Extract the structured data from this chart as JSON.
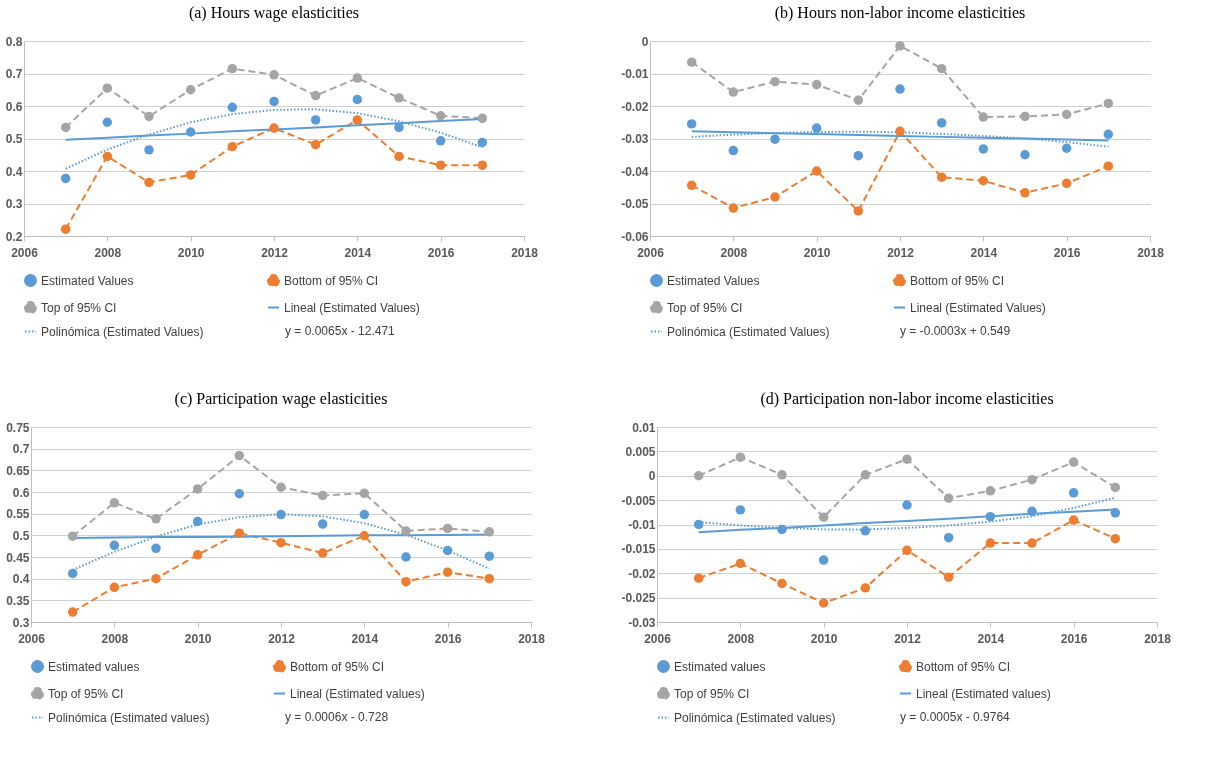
{
  "chart_data": [
    {
      "type": "line",
      "title": "(a) Hours wage elasticities",
      "xlim": [
        2006,
        2018
      ],
      "xticks": [
        2006,
        2008,
        2010,
        2012,
        2014,
        2016,
        2018
      ],
      "ylim": [
        0.2,
        0.8
      ],
      "yticks": [
        0.2,
        0.3,
        0.4,
        0.5,
        0.6,
        0.7,
        0.8
      ],
      "grid": "y",
      "legend": "bottom",
      "annotations": [
        "y = 0.0065x - 12.471"
      ],
      "x": [
        2007,
        2008,
        2009,
        2010,
        2011,
        2012,
        2013,
        2014,
        2015,
        2016,
        2017
      ],
      "series": [
        {
          "name": "Estimated Values",
          "type": "scatter",
          "marker": "circle",
          "color": "#5b9bd5",
          "values": [
            0.377,
            0.55,
            0.465,
            0.52,
            0.596,
            0.614,
            0.557,
            0.62,
            0.534,
            0.493,
            0.488
          ]
        },
        {
          "name": "Bottom of 95% CI",
          "type": "line",
          "marker": "circle",
          "line_style": "dashed",
          "color": "#ed7d31",
          "values": [
            0.221,
            0.445,
            0.365,
            0.388,
            0.475,
            0.532,
            0.481,
            0.557,
            0.445,
            0.418,
            0.418
          ]
        },
        {
          "name": "Top of 95% CI",
          "type": "line",
          "marker": "circle",
          "line_style": "dashed",
          "color": "#a5a5a5",
          "values": [
            0.534,
            0.655,
            0.568,
            0.65,
            0.715,
            0.696,
            0.632,
            0.686,
            0.625,
            0.57,
            0.562
          ]
        },
        {
          "name": "Lineal (Estimated Values)",
          "type": "line",
          "marker": "none",
          "line_style": "solid",
          "color": "#5b9bd5",
          "values": [
            0.496,
            0.502,
            0.509,
            0.515,
            0.522,
            0.528,
            0.534,
            0.541,
            0.547,
            0.554,
            0.56
          ]
        },
        {
          "name": "Polinómica (Estimated Values)",
          "type": "line",
          "marker": "none",
          "line_style": "dotted",
          "color": "#5b9bd5",
          "values": [
            0.407,
            0.466,
            0.512,
            0.55,
            0.575,
            0.588,
            0.59,
            0.578,
            0.553,
            0.518,
            0.473
          ]
        }
      ]
    },
    {
      "type": "line",
      "title": "(b) Hours non-labor income elasticities",
      "xlim": [
        2006,
        2018
      ],
      "xticks": [
        2006,
        2008,
        2010,
        2012,
        2014,
        2016,
        2018
      ],
      "ylim": [
        -0.06,
        0
      ],
      "yticks": [
        -0.06,
        -0.05,
        -0.04,
        -0.03,
        -0.02,
        -0.01,
        0
      ],
      "grid": "y",
      "legend": "bottom",
      "annotations": [
        "y = -0.0003x + 0.549"
      ],
      "x": [
        2007,
        2008,
        2009,
        2010,
        2011,
        2012,
        2013,
        2014,
        2015,
        2016,
        2017
      ],
      "series": [
        {
          "name": "Estimated Values",
          "type": "scatter",
          "marker": "circle",
          "color": "#5b9bd5",
          "values": [
            -0.0255,
            -0.0337,
            -0.0302,
            -0.0268,
            -0.0353,
            -0.0148,
            -0.0252,
            -0.0332,
            -0.035,
            -0.033,
            -0.0287
          ]
        },
        {
          "name": "Bottom of 95% CI",
          "type": "line",
          "marker": "circle",
          "line_style": "dashed",
          "color": "#ed7d31",
          "values": [
            -0.0444,
            -0.0514,
            -0.048,
            -0.04,
            -0.0523,
            -0.0278,
            -0.0419,
            -0.043,
            -0.0467,
            -0.0438,
            -0.0385
          ]
        },
        {
          "name": "Top of 95% CI",
          "type": "line",
          "marker": "circle",
          "line_style": "dashed",
          "color": "#a5a5a5",
          "values": [
            -0.0065,
            -0.0157,
            -0.0125,
            -0.0134,
            -0.0182,
            -0.0015,
            -0.0085,
            -0.0234,
            -0.0232,
            -0.0226,
            -0.0192
          ]
        },
        {
          "name": "Lineal (Estimated Values)",
          "type": "line",
          "marker": "none",
          "line_style": "solid",
          "color": "#5b9bd5",
          "values": [
            -0.0278,
            -0.0281,
            -0.0284,
            -0.0286,
            -0.0289,
            -0.0292,
            -0.0295,
            -0.0298,
            -0.03,
            -0.0303,
            -0.0306
          ]
        },
        {
          "name": "Polinómica (Estimated Values)",
          "type": "line",
          "marker": "none",
          "line_style": "dotted",
          "color": "#5b9bd5",
          "values": [
            -0.0295,
            -0.0288,
            -0.0283,
            -0.028,
            -0.0279,
            -0.0281,
            -0.0286,
            -0.0292,
            -0.03,
            -0.0311,
            -0.0325
          ]
        }
      ]
    },
    {
      "type": "line",
      "title": "(c) Participation wage elasticities",
      "xlim": [
        2006,
        2018
      ],
      "xticks": [
        2006,
        2008,
        2010,
        2012,
        2014,
        2016,
        2018
      ],
      "ylim": [
        0.3,
        0.75
      ],
      "yticks": [
        0.3,
        0.35,
        0.4,
        0.45,
        0.5,
        0.55,
        0.6,
        0.65,
        0.7,
        0.75
      ],
      "grid": "y",
      "legend": "bottom",
      "annotations": [
        "y = 0.0006x - 0.728"
      ],
      "x": [
        2007,
        2008,
        2009,
        2010,
        2011,
        2012,
        2013,
        2014,
        2015,
        2016,
        2017
      ],
      "series": [
        {
          "name": "Estimated values",
          "type": "scatter",
          "marker": "circle",
          "color": "#5b9bd5",
          "values": [
            0.412,
            0.477,
            0.47,
            0.532,
            0.596,
            0.548,
            0.526,
            0.548,
            0.45,
            0.465,
            0.452
          ]
        },
        {
          "name": "Bottom of 95% CI",
          "type": "line",
          "marker": "circle",
          "line_style": "dashed",
          "color": "#ed7d31",
          "values": [
            0.323,
            0.38,
            0.4,
            0.455,
            0.505,
            0.483,
            0.459,
            0.499,
            0.393,
            0.415,
            0.4
          ]
        },
        {
          "name": "Top of 95% CI",
          "type": "line",
          "marker": "circle",
          "line_style": "dashed",
          "color": "#a5a5a5",
          "values": [
            0.498,
            0.575,
            0.538,
            0.607,
            0.684,
            0.611,
            0.592,
            0.597,
            0.51,
            0.516,
            0.508
          ]
        },
        {
          "name": "Lineal (Estimated values)",
          "type": "line",
          "marker": "none",
          "line_style": "solid",
          "color": "#5b9bd5",
          "values": [
            0.494,
            0.495,
            0.496,
            0.496,
            0.497,
            0.498,
            0.499,
            0.5,
            0.5,
            0.501,
            0.502
          ]
        },
        {
          "name": "Polinómica (Estimated values)",
          "type": "line",
          "marker": "none",
          "line_style": "dotted",
          "color": "#5b9bd5",
          "values": [
            0.42,
            0.462,
            0.497,
            0.525,
            0.542,
            0.549,
            0.544,
            0.528,
            0.501,
            0.465,
            0.423
          ]
        }
      ]
    },
    {
      "type": "line",
      "title": "(d) Participation non-labor income elasticities",
      "xlim": [
        2006,
        2018
      ],
      "xticks": [
        2006,
        2008,
        2010,
        2012,
        2014,
        2016,
        2018
      ],
      "ylim": [
        -0.03,
        0.01
      ],
      "yticks": [
        -0.03,
        -0.025,
        -0.02,
        -0.015,
        -0.01,
        -0.005,
        0,
        0.005,
        0.01
      ],
      "grid": "y",
      "legend": "bottom",
      "annotations": [
        "y = 0.0005x - 0.9764"
      ],
      "x": [
        2007,
        2008,
        2009,
        2010,
        2011,
        2012,
        2013,
        2014,
        2015,
        2016,
        2017
      ],
      "series": [
        {
          "name": "Estimated values",
          "type": "scatter",
          "marker": "circle",
          "color": "#5b9bd5",
          "values": [
            -0.01,
            -0.007,
            -0.011,
            -0.0173,
            -0.0113,
            -0.006,
            -0.0127,
            -0.0084,
            -0.0073,
            -0.0035,
            -0.0076
          ]
        },
        {
          "name": "Bottom of 95% CI",
          "type": "line",
          "marker": "circle",
          "line_style": "dashed",
          "color": "#ed7d31",
          "values": [
            -0.021,
            -0.018,
            -0.0221,
            -0.0261,
            -0.023,
            -0.0153,
            -0.0208,
            -0.0138,
            -0.0138,
            -0.0091,
            -0.0129
          ]
        },
        {
          "name": "Top of 95% CI",
          "type": "line",
          "marker": "circle",
          "line_style": "dashed",
          "color": "#a5a5a5",
          "values": [
            0,
            0.0038,
            0.0002,
            -0.0085,
            0.0002,
            0.0034,
            -0.0046,
            -0.0031,
            -0.0008,
            0.0028,
            -0.0024
          ]
        },
        {
          "name": "Lineal (Estimated values)",
          "type": "line",
          "marker": "none",
          "line_style": "solid",
          "color": "#5b9bd5",
          "values": [
            -0.0116,
            -0.0111,
            -0.0107,
            -0.0102,
            -0.0097,
            -0.0093,
            -0.0088,
            -0.0083,
            -0.0078,
            -0.0074,
            -0.0069
          ]
        },
        {
          "name": "Polinómica (Estimated values)",
          "type": "line",
          "marker": "none",
          "line_style": "dotted",
          "color": "#5b9bd5",
          "values": [
            -0.0095,
            -0.0102,
            -0.0107,
            -0.011,
            -0.011,
            -0.0107,
            -0.0102,
            -0.0094,
            -0.0083,
            -0.0066,
            -0.0045
          ]
        }
      ]
    }
  ]
}
